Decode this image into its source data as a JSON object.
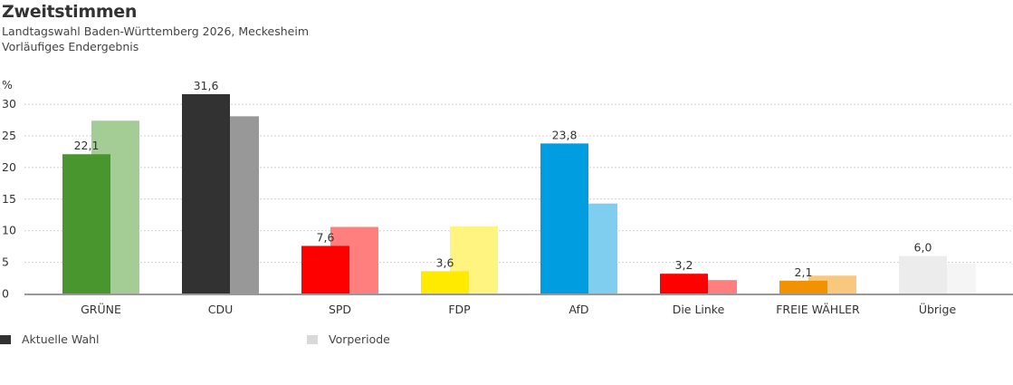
{
  "header": {
    "title": "Zweitstimmen",
    "subtitle1": "Landtagswahl Baden-Württemberg 2026, Meckesheim",
    "subtitle2": "Vorläufiges Endergebnis"
  },
  "chart_data": {
    "type": "bar",
    "title": "Zweitstimmen",
    "subtitle": "Landtagswahl Baden-Württemberg 2026, Meckesheim — Vorläufiges Endergebnis",
    "xlabel": "",
    "ylabel": "%",
    "ylim": [
      0,
      30
    ],
    "yticks": [
      0,
      5,
      10,
      15,
      20,
      25,
      30
    ],
    "grid": true,
    "legend_position": "bottom-left",
    "categories": [
      "GRÜNE",
      "CDU",
      "SPD",
      "FDP",
      "AfD",
      "Die Linke",
      "FREIE WÄHLER",
      "Übrige"
    ],
    "series": [
      {
        "name": "Aktuelle Wahl",
        "values": [
          22.1,
          31.6,
          7.6,
          3.6,
          23.8,
          3.2,
          2.1,
          6.0
        ],
        "labels": [
          "22,1",
          "31,6",
          "7,6",
          "3,6",
          "23,8",
          "3,2",
          "2,1",
          "6,0"
        ],
        "colors": [
          "#4a962e",
          "#323232",
          "#ff0000",
          "#ffea00",
          "#009ee0",
          "#ff0000",
          "#f39200",
          "#ececec"
        ]
      },
      {
        "name": "Vorperiode",
        "values": [
          27.4,
          28.1,
          10.6,
          10.7,
          14.3,
          2.2,
          2.9,
          4.8
        ],
        "colors": [
          "#a4cc95",
          "#989898",
          "#ff7f7f",
          "#fff47f",
          "#7fcef0",
          "#ff7f7f",
          "#f9c87f",
          "#f5f5f5"
        ]
      }
    ]
  },
  "legend": {
    "items": [
      {
        "label": "Aktuelle Wahl",
        "color": "#323232"
      },
      {
        "label": "Vorperiode",
        "color": "#d9d9d9"
      }
    ]
  }
}
